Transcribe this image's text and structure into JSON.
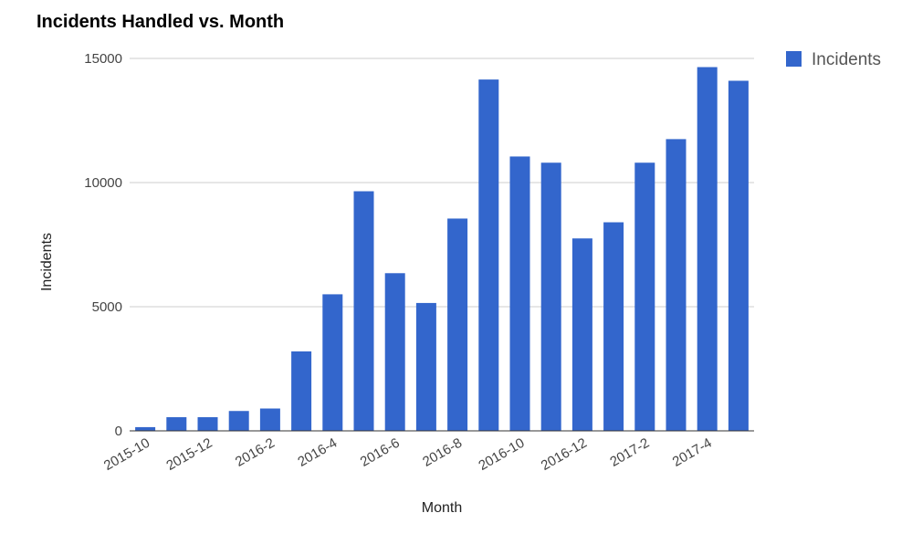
{
  "chart_data": {
    "type": "bar",
    "title": "Incidents Handled vs. Month",
    "xlabel": "Month",
    "ylabel": "Incidents",
    "ylim": [
      0,
      15000
    ],
    "yticks": [
      0,
      5000,
      10000,
      15000
    ],
    "grid": true,
    "legend_position": "top-right",
    "categories": [
      "2015-10",
      "2015-11",
      "2015-12",
      "2016-1",
      "2016-2",
      "2016-3",
      "2016-4",
      "2016-5",
      "2016-6",
      "2016-7",
      "2016-8",
      "2016-9",
      "2016-10",
      "2016-11",
      "2016-12",
      "2017-1",
      "2017-2",
      "2017-3",
      "2017-4",
      "2017-5"
    ],
    "tick_labels": [
      "2015-10",
      "2015-12",
      "2016-2",
      "2016-4",
      "2016-6",
      "2016-8",
      "2016-10",
      "2016-12",
      "2017-2",
      "2017-4"
    ],
    "series": [
      {
        "name": "Incidents",
        "color": "#3366cc",
        "values": [
          150,
          550,
          550,
          800,
          900,
          3200,
          5500,
          9650,
          6350,
          5150,
          8550,
          14150,
          11050,
          10800,
          7750,
          8400,
          10800,
          11750,
          14650,
          14100
        ]
      }
    ]
  }
}
